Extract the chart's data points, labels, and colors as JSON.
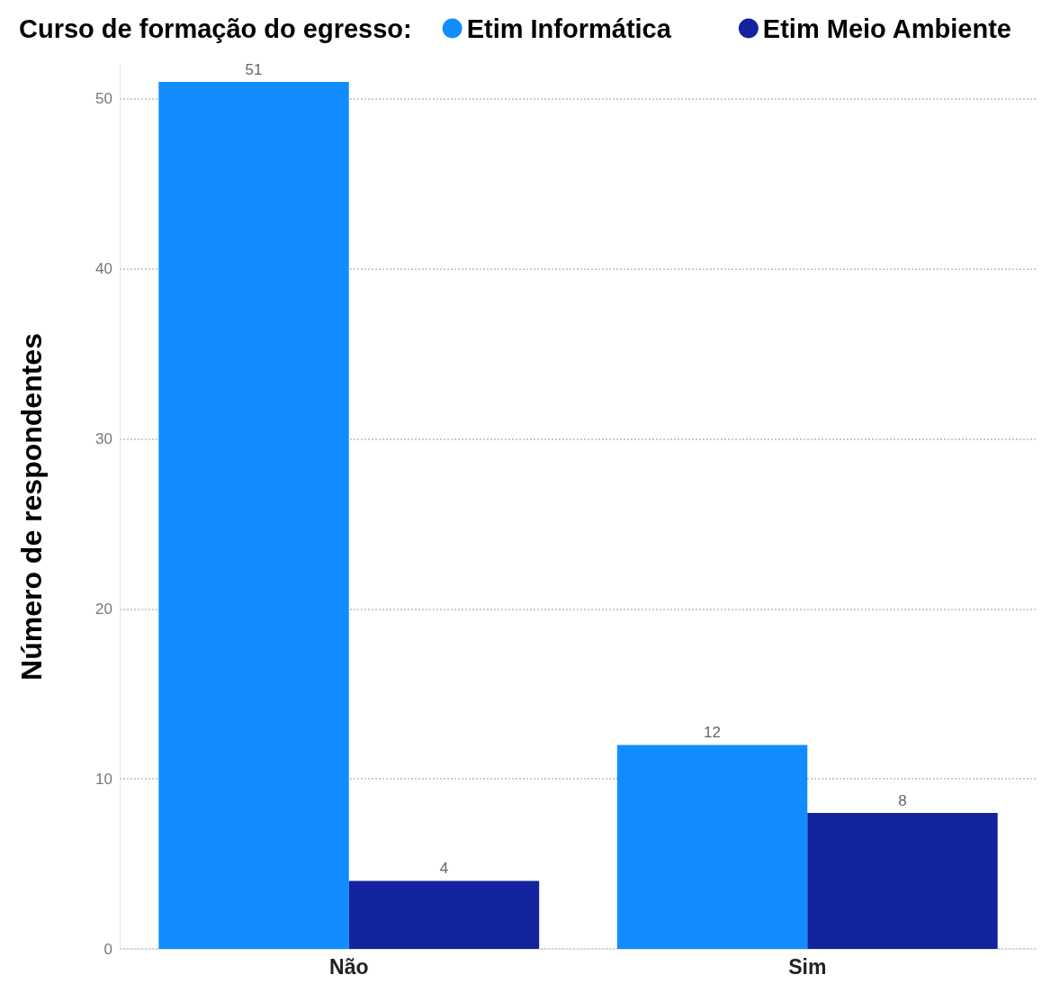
{
  "chart_data": {
    "type": "bar",
    "legend_title": "Curso de formação do egresso:",
    "ylabel": "Número de respondentes",
    "categories": [
      "Não",
      "Sim"
    ],
    "series": [
      {
        "name": "Etim Informática",
        "color": "#118dff",
        "values": [
          51,
          12
        ]
      },
      {
        "name": "Etim Meio Ambiente",
        "color": "#12239e",
        "values": [
          4,
          8
        ]
      }
    ],
    "ylim": [
      0,
      52
    ],
    "yticks": [
      0,
      10,
      20,
      30,
      40,
      50
    ],
    "grid": "y",
    "legend": "top right",
    "data_labels": true
  }
}
